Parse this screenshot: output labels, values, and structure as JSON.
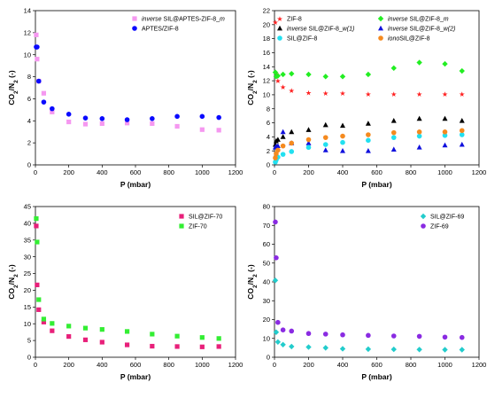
{
  "chart_data": [
    {
      "type": "scatter",
      "xlabel": "P (mbar)",
      "ylabel_parts": [
        [
          "CO",
          false
        ],
        [
          "2",
          true
        ],
        [
          "/N",
          false
        ],
        [
          "2",
          true
        ],
        [
          " (-)",
          false
        ]
      ],
      "xlim": [
        0,
        1200
      ],
      "ylim": [
        0,
        14
      ],
      "xticks": [
        0,
        200,
        400,
        600,
        800,
        1000,
        1200
      ],
      "yticks": [
        0,
        2,
        4,
        6,
        8,
        10,
        12,
        14
      ],
      "legend_position": "top-right",
      "legend_columns": 1,
      "series": [
        {
          "name_parts": [
            [
              "inverse",
              true
            ],
            [
              " SIL@APTES-ZIF-8_",
              false
            ],
            [
              "m",
              true
            ]
          ],
          "color": "#f598f0",
          "marker": "square",
          "x": [
            5,
            10,
            20,
            50,
            100,
            200,
            300,
            400,
            550,
            700,
            850,
            1000,
            1100
          ],
          "y": [
            11.8,
            9.6,
            7.6,
            6.5,
            4.8,
            3.9,
            3.7,
            3.75,
            3.8,
            3.75,
            3.5,
            3.2,
            3.15
          ]
        },
        {
          "name_parts": [
            [
              "APTES/ZIF-8",
              false
            ]
          ],
          "color": "#0a0aff",
          "marker": "circle",
          "x": [
            5,
            10,
            20,
            50,
            100,
            200,
            300,
            400,
            550,
            700,
            850,
            1000,
            1100
          ],
          "y": [
            10.7,
            10.7,
            7.6,
            5.7,
            5.1,
            4.6,
            4.25,
            4.2,
            4.1,
            4.2,
            4.4,
            4.4,
            4.3
          ]
        }
      ]
    },
    {
      "type": "scatter",
      "xlabel": "P (mbar)",
      "ylabel_parts": [
        [
          "CO",
          false
        ],
        [
          "2",
          true
        ],
        [
          "/N",
          false
        ],
        [
          "2",
          true
        ],
        [
          " (-)",
          false
        ]
      ],
      "xlim": [
        0,
        1200
      ],
      "ylim": [
        0,
        22
      ],
      "xticks": [
        0,
        200,
        400,
        600,
        800,
        1000,
        1200
      ],
      "yticks": [
        0,
        2,
        4,
        6,
        8,
        10,
        12,
        14,
        16,
        18,
        20,
        22
      ],
      "legend_position": "top",
      "legend_columns": 2,
      "series": [
        {
          "name_parts": [
            [
              "ZIF-8",
              false
            ]
          ],
          "color": "#ff2020",
          "marker": "star",
          "x": [
            5,
            10,
            20,
            50,
            100,
            200,
            300,
            400,
            550,
            700,
            850,
            1000,
            1100
          ],
          "y": [
            20.3,
            13.0,
            12.0,
            11.1,
            10.6,
            10.3,
            10.2,
            10.2,
            10.1,
            10.1,
            10.1,
            10.1,
            10.1
          ]
        },
        {
          "name_parts": [
            [
              "inverse",
              true
            ],
            [
              " SIL@ZIF-8_",
              false
            ],
            [
              "m",
              true
            ]
          ],
          "color": "#22ee22",
          "marker": "diamond",
          "x": [
            5,
            10,
            20,
            50,
            100,
            200,
            300,
            400,
            550,
            700,
            850,
            1000,
            1100
          ],
          "y": [
            13.2,
            12.6,
            12.7,
            12.9,
            13.0,
            12.9,
            12.6,
            12.6,
            12.9,
            13.8,
            14.6,
            14.4,
            13.4
          ]
        },
        {
          "name_parts": [
            [
              "inverse",
              true
            ],
            [
              " SIL@ZIF-8_",
              false
            ],
            [
              "w(1)",
              true
            ]
          ],
          "color": "#000000",
          "marker": "triangle",
          "x": [
            5,
            10,
            20,
            50,
            100,
            200,
            300,
            400,
            550,
            700,
            850,
            1000,
            1100
          ],
          "y": [
            2.9,
            3.4,
            3.6,
            4.0,
            4.7,
            5.0,
            5.7,
            5.6,
            5.9,
            6.3,
            6.6,
            6.6,
            6.3
          ]
        },
        {
          "name_parts": [
            [
              "inverse",
              true
            ],
            [
              " SIL@ZIF-8_",
              false
            ],
            [
              "w(2)",
              true
            ]
          ],
          "color": "#1010dd",
          "marker": "triangle",
          "x": [
            5,
            10,
            20,
            50,
            100,
            200,
            300,
            400,
            550,
            700,
            850,
            1000,
            1100
          ],
          "y": [
            2.5,
            2.6,
            2.7,
            4.7,
            3.1,
            3.1,
            2.1,
            2.0,
            2.0,
            2.2,
            2.5,
            2.8,
            2.9
          ]
        },
        {
          "name_parts": [
            [
              "SIL@ZIF-8",
              false
            ]
          ],
          "color": "#22e0f0",
          "marker": "circle",
          "x": [
            5,
            10,
            20,
            50,
            100,
            200,
            300,
            400,
            550,
            700,
            850,
            1000,
            1100
          ],
          "y": [
            0.4,
            0.7,
            1.1,
            1.5,
            1.9,
            2.5,
            2.9,
            3.2,
            3.5,
            3.9,
            4.1,
            4.2,
            4.3
          ]
        },
        {
          "name_parts": [
            [
              "iono",
              true
            ],
            [
              "SIL@ZIF-8",
              false
            ]
          ],
          "color": "#f58a1f",
          "marker": "circle",
          "x": [
            5,
            10,
            20,
            50,
            100,
            200,
            300,
            400,
            550,
            700,
            850,
            1000,
            1100
          ],
          "y": [
            1.0,
            1.6,
            2.1,
            2.7,
            3.1,
            3.6,
            3.9,
            4.1,
            4.3,
            4.6,
            4.7,
            4.7,
            4.9
          ]
        }
      ]
    },
    {
      "type": "scatter",
      "xlabel": "P (mbar)",
      "ylabel_parts": [
        [
          "CO",
          false
        ],
        [
          "2",
          true
        ],
        [
          "/N",
          false
        ],
        [
          "2",
          true
        ],
        [
          " (-)",
          false
        ]
      ],
      "xlim": [
        0,
        1200
      ],
      "ylim": [
        0,
        45
      ],
      "xticks": [
        0,
        200,
        400,
        600,
        800,
        1000,
        1200
      ],
      "yticks": [
        0,
        5,
        10,
        15,
        20,
        25,
        30,
        35,
        40,
        45
      ],
      "legend_position": "top-right",
      "legend_columns": 1,
      "series": [
        {
          "name_parts": [
            [
              "SIL@ZIF-70",
              false
            ]
          ],
          "color": "#e8207a",
          "marker": "square",
          "x": [
            5,
            10,
            20,
            50,
            100,
            200,
            300,
            400,
            550,
            700,
            850,
            1000,
            1100
          ],
          "y": [
            39.2,
            21.6,
            14.2,
            10.5,
            7.9,
            6.2,
            5.2,
            4.5,
            3.7,
            3.3,
            3.2,
            3.1,
            3.2
          ]
        },
        {
          "name_parts": [
            [
              "ZIF-70",
              false
            ]
          ],
          "color": "#33ee33",
          "marker": "square",
          "x": [
            5,
            10,
            20,
            50,
            100,
            200,
            300,
            400,
            550,
            700,
            850,
            1000,
            1100
          ],
          "y": [
            41.4,
            34.4,
            17.2,
            11.4,
            10.1,
            9.3,
            8.7,
            8.3,
            7.7,
            6.9,
            6.3,
            5.9,
            5.6
          ]
        }
      ]
    },
    {
      "type": "scatter",
      "xlabel": "P (mbar)",
      "ylabel_parts": [
        [
          "CO",
          false
        ],
        [
          "2",
          true
        ],
        [
          "/N",
          false
        ],
        [
          "2",
          true
        ],
        [
          " (-)",
          false
        ]
      ],
      "xlim": [
        0,
        1200
      ],
      "ylim": [
        0,
        80
      ],
      "xticks": [
        0,
        200,
        400,
        600,
        800,
        1000,
        1200
      ],
      "yticks": [
        0,
        10,
        20,
        30,
        40,
        50,
        60,
        70,
        80
      ],
      "legend_position": "top-right",
      "legend_columns": 1,
      "series": [
        {
          "name_parts": [
            [
              "SIL@ZIF-69",
              false
            ]
          ],
          "color": "#22cccc",
          "marker": "diamond",
          "x": [
            5,
            10,
            20,
            50,
            100,
            200,
            300,
            400,
            550,
            700,
            850,
            1000,
            1100
          ],
          "y": [
            40.8,
            13.3,
            8.1,
            6.7,
            5.7,
            5.4,
            5.0,
            4.5,
            4.3,
            4.2,
            4.1,
            4.0,
            4.0
          ]
        },
        {
          "name_parts": [
            [
              "ZIF-69",
              false
            ]
          ],
          "color": "#8a2be2",
          "marker": "circle",
          "x": [
            5,
            10,
            20,
            50,
            100,
            200,
            300,
            400,
            550,
            700,
            850,
            1000,
            1100
          ],
          "y": [
            71.8,
            52.8,
            18.5,
            14.5,
            13.9,
            12.6,
            12.3,
            11.9,
            11.6,
            11.3,
            11.1,
            10.7,
            10.5
          ]
        }
      ]
    }
  ]
}
